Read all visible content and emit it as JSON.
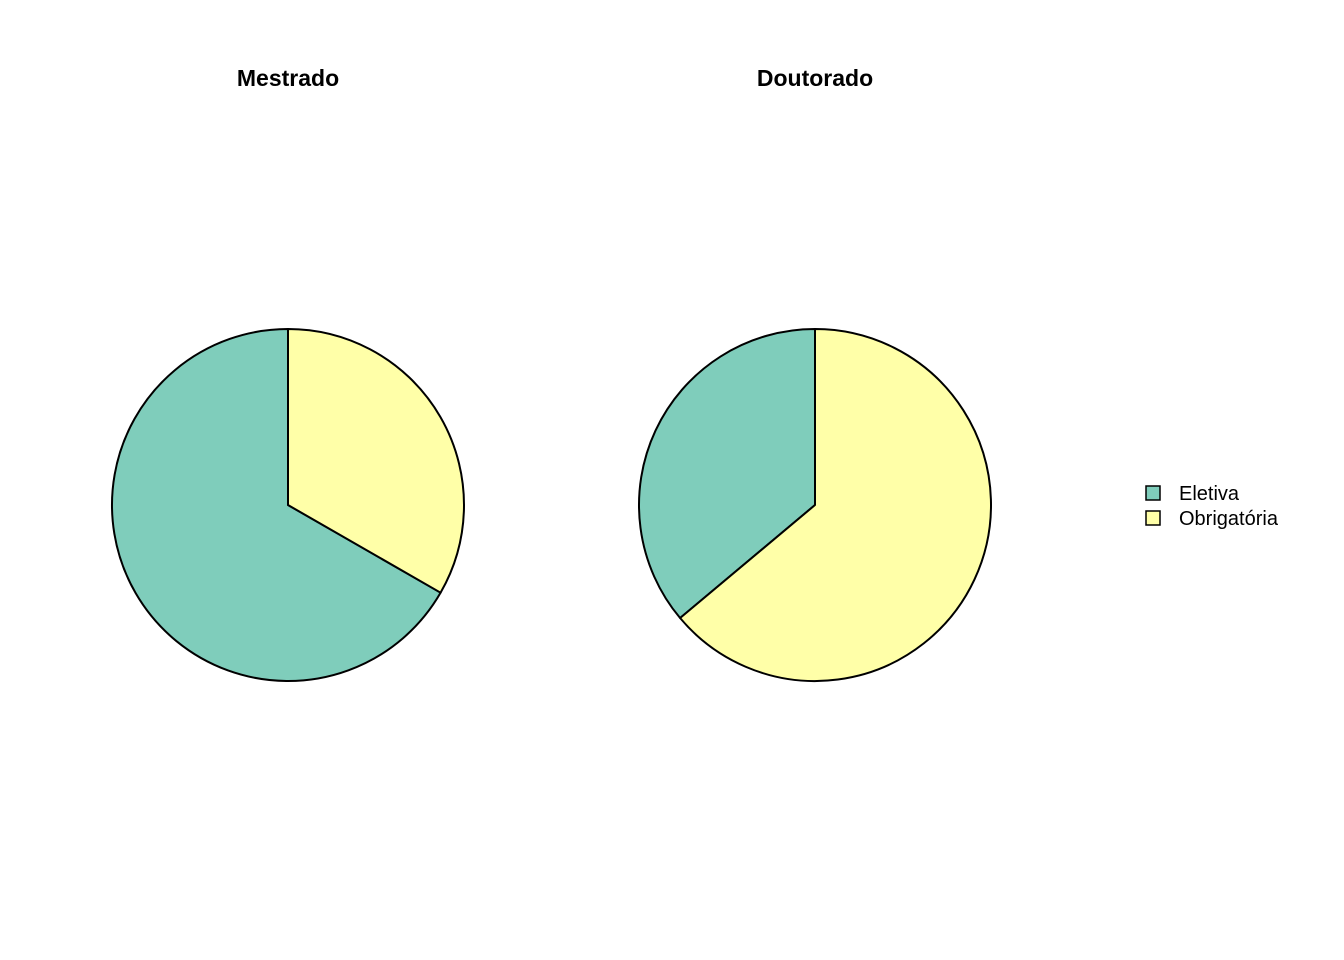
{
  "chart_data": [
    {
      "type": "pie",
      "title": "Mestrado",
      "categories": [
        "Eletiva",
        "Obrigatória"
      ],
      "values": [
        66.7,
        33.3
      ],
      "colors": [
        "#7FCDBB",
        "#FFFFA8"
      ]
    },
    {
      "type": "pie",
      "title": "Doutorado",
      "categories": [
        "Eletiva",
        "Obrigatória"
      ],
      "values": [
        36.1,
        63.9
      ],
      "colors": [
        "#7FCDBB",
        "#FFFFA8"
      ]
    }
  ],
  "legend": {
    "position": "right",
    "items": [
      {
        "label": "Eletiva",
        "color": "#7FCDBB"
      },
      {
        "label": "Obrigatória",
        "color": "#FFFFA8"
      }
    ]
  }
}
